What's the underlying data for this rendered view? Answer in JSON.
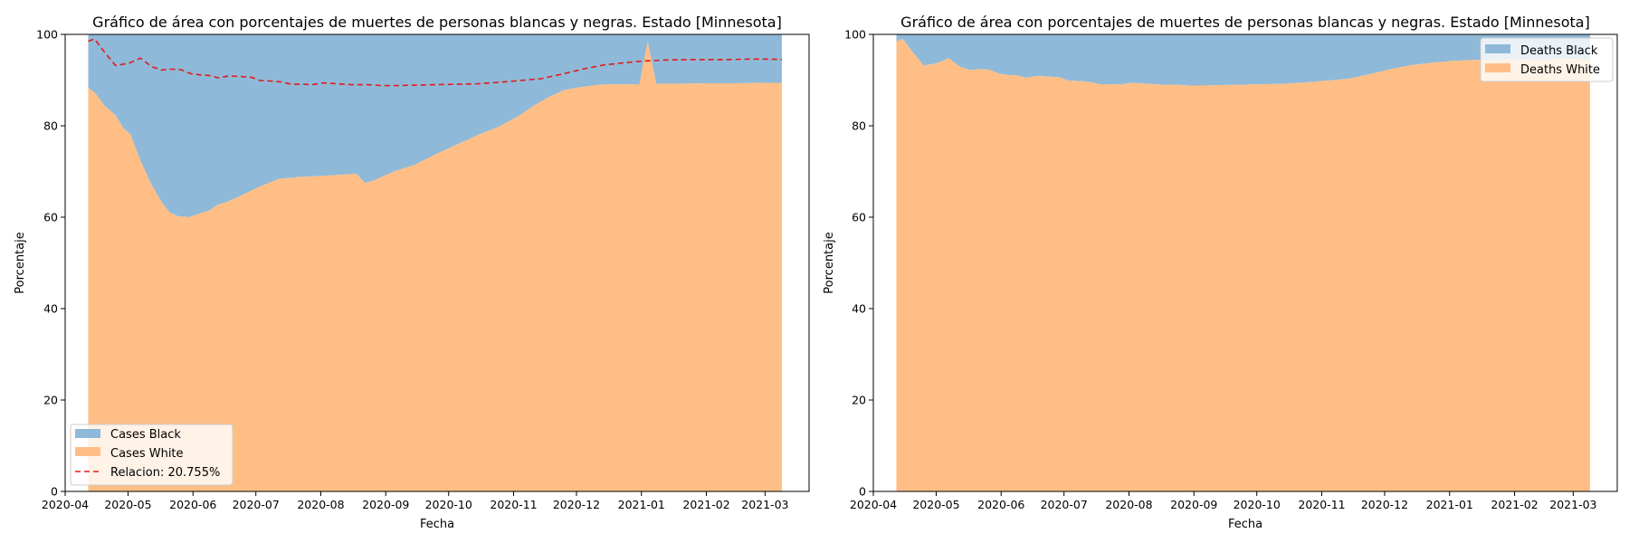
{
  "colors": {
    "black_area": "#8fb9d8",
    "white_area": "#ffbe86",
    "ratio_line": "#e31a1c"
  },
  "chart_data": [
    {
      "type": "area",
      "title": "Gráfico de área con porcentajes de muertes de personas blancas y negras. Estado [Minnesota]",
      "xlabel": "Fecha",
      "ylabel": "Porcentaje",
      "xlim": [
        "2020-04-01",
        "2021-03-22"
      ],
      "ylim": [
        0,
        100
      ],
      "yticks": [
        0,
        20,
        40,
        60,
        80,
        100
      ],
      "xtick_labels": [
        "2020-04",
        "2020-05",
        "2020-06",
        "2020-07",
        "2020-08",
        "2020-09",
        "2020-10",
        "2020-11",
        "2020-12",
        "2021-01",
        "2021-02",
        "2021-03"
      ],
      "legend_position": "lower-left",
      "grid": false,
      "x": [
        "2020-04-12",
        "2020-04-15",
        "2020-04-20",
        "2020-04-25",
        "2020-04-29",
        "2020-05-02",
        "2020-05-07",
        "2020-05-12",
        "2020-05-17",
        "2020-05-21",
        "2020-05-25",
        "2020-05-30",
        "2020-06-09",
        "2020-06-13",
        "2020-06-17",
        "2020-06-22",
        "2020-07-02",
        "2020-07-12",
        "2020-07-22",
        "2020-08-01",
        "2020-08-11",
        "2020-08-18",
        "2020-08-22",
        "2020-08-26",
        "2020-08-29",
        "2020-09-05",
        "2020-09-15",
        "2020-09-25",
        "2020-10-05",
        "2020-10-15",
        "2020-10-25",
        "2020-11-04",
        "2020-11-11",
        "2020-11-18",
        "2020-11-25",
        "2020-12-02",
        "2020-12-12",
        "2020-12-22",
        "2020-12-31",
        "2021-01-04",
        "2021-01-08",
        "2021-01-18",
        "2021-02-01",
        "2021-02-15",
        "2021-03-01",
        "2021-03-09"
      ],
      "series": [
        {
          "name": "Cases White",
          "values": [
            88.3,
            87.3,
            84.3,
            82.3,
            79.3,
            78.3,
            72.3,
            67.3,
            63.3,
            61.0,
            60.2,
            60.0,
            61.5,
            62.8,
            63.3,
            64.3,
            66.5,
            68.4,
            68.8,
            69.0,
            69.3,
            69.5,
            67.5,
            68.0,
            68.6,
            70.0,
            71.5,
            73.8,
            75.9,
            78.0,
            79.8,
            82.3,
            84.5,
            86.3,
            87.8,
            88.4,
            89.0,
            89.1,
            89.0,
            98.5,
            89.2,
            89.2,
            89.3,
            89.3,
            89.4,
            89.4
          ]
        },
        {
          "name": "Cases Black",
          "values": [
            11.7,
            12.7,
            15.7,
            17.7,
            20.7,
            21.7,
            27.7,
            32.7,
            36.7,
            39.0,
            39.8,
            40.0,
            38.5,
            37.2,
            36.7,
            35.7,
            33.5,
            31.6,
            31.2,
            31.0,
            30.7,
            30.5,
            32.5,
            32.0,
            31.4,
            30.0,
            28.5,
            26.2,
            24.1,
            22.0,
            20.2,
            17.7,
            15.5,
            13.7,
            12.2,
            11.6,
            11.0,
            10.9,
            11.0,
            1.5,
            10.8,
            10.8,
            10.7,
            10.7,
            10.6,
            10.6
          ]
        }
      ],
      "line": {
        "name": "Relacion: 20.755%",
        "x": [
          "2020-04-12",
          "2020-04-15",
          "2020-04-20",
          "2020-04-25",
          "2020-04-29",
          "2020-05-02",
          "2020-05-07",
          "2020-05-12",
          "2020-05-17",
          "2020-05-21",
          "2020-05-26",
          "2020-05-31",
          "2020-06-05",
          "2020-06-09",
          "2020-06-13",
          "2020-06-18",
          "2020-06-23",
          "2020-06-29",
          "2020-07-03",
          "2020-07-08",
          "2020-07-13",
          "2020-07-18",
          "2020-07-23",
          "2020-07-28",
          "2020-08-02",
          "2020-08-09",
          "2020-08-16",
          "2020-08-23",
          "2020-08-30",
          "2020-09-06",
          "2020-09-15",
          "2020-09-25",
          "2020-10-05",
          "2020-10-15",
          "2020-10-25",
          "2020-11-04",
          "2020-11-14",
          "2020-11-24",
          "2020-12-04",
          "2020-12-14",
          "2020-12-24",
          "2021-01-03",
          "2021-01-13",
          "2021-01-23",
          "2021-02-02",
          "2021-02-12",
          "2021-02-22",
          "2021-03-02",
          "2021-03-09"
        ],
        "values": [
          98.5,
          99.0,
          96.0,
          93.2,
          93.5,
          93.8,
          94.8,
          93.0,
          92.2,
          92.4,
          92.3,
          91.4,
          91.1,
          91.0,
          90.5,
          90.9,
          90.8,
          90.6,
          89.9,
          89.8,
          89.6,
          89.1,
          89.1,
          89.0,
          89.4,
          89.2,
          89.0,
          89.0,
          88.8,
          88.8,
          88.9,
          89.0,
          89.1,
          89.2,
          89.5,
          89.9,
          90.3,
          91.3,
          92.4,
          93.3,
          93.8,
          94.2,
          94.4,
          94.5,
          94.5,
          94.5,
          94.6,
          94.6,
          94.5
        ]
      }
    },
    {
      "type": "area",
      "title": "Gráfico de área con porcentajes de muertes de personas blancas y negras. Estado [Minnesota]",
      "xlabel": "Fecha",
      "ylabel": "Porcentaje",
      "xlim": [
        "2020-04-01",
        "2021-03-22"
      ],
      "ylim": [
        0,
        100
      ],
      "yticks": [
        0,
        20,
        40,
        60,
        80,
        100
      ],
      "xtick_labels": [
        "2020-04",
        "2020-05",
        "2020-06",
        "2020-07",
        "2020-08",
        "2020-09",
        "2020-10",
        "2020-11",
        "2020-12",
        "2021-01",
        "2021-02",
        "2021-03"
      ],
      "legend_position": "upper-right",
      "grid": false,
      "x": [
        "2020-04-12",
        "2020-04-15",
        "2020-04-20",
        "2020-04-25",
        "2020-04-29",
        "2020-05-02",
        "2020-05-07",
        "2020-05-12",
        "2020-05-17",
        "2020-05-21",
        "2020-05-26",
        "2020-05-31",
        "2020-06-05",
        "2020-06-09",
        "2020-06-13",
        "2020-06-18",
        "2020-06-23",
        "2020-06-29",
        "2020-07-03",
        "2020-07-08",
        "2020-07-13",
        "2020-07-18",
        "2020-07-23",
        "2020-07-28",
        "2020-08-02",
        "2020-08-09",
        "2020-08-16",
        "2020-08-23",
        "2020-08-30",
        "2020-09-06",
        "2020-09-15",
        "2020-09-25",
        "2020-10-05",
        "2020-10-15",
        "2020-10-25",
        "2020-11-04",
        "2020-11-14",
        "2020-11-24",
        "2020-12-04",
        "2020-12-14",
        "2020-12-24",
        "2021-01-03",
        "2021-01-13",
        "2021-01-23",
        "2021-02-02",
        "2021-02-12",
        "2021-02-22",
        "2021-03-02",
        "2021-03-09"
      ],
      "series": [
        {
          "name": "Deaths White",
          "values": [
            98.5,
            99.0,
            96.0,
            93.2,
            93.5,
            93.8,
            94.8,
            93.0,
            92.2,
            92.4,
            92.3,
            91.4,
            91.1,
            91.0,
            90.5,
            90.9,
            90.8,
            90.6,
            89.9,
            89.8,
            89.6,
            89.1,
            89.1,
            89.0,
            89.4,
            89.2,
            89.0,
            89.0,
            88.8,
            88.8,
            88.9,
            89.0,
            89.1,
            89.2,
            89.5,
            89.9,
            90.3,
            91.3,
            92.4,
            93.3,
            93.8,
            94.2,
            94.4,
            94.5,
            94.5,
            94.5,
            94.6,
            94.6,
            94.5
          ]
        },
        {
          "name": "Deaths Black",
          "values": [
            1.5,
            1.0,
            4.0,
            6.8,
            6.5,
            6.2,
            5.2,
            7.0,
            7.8,
            7.6,
            7.7,
            8.6,
            8.9,
            9.0,
            9.5,
            9.1,
            9.2,
            9.4,
            10.1,
            10.2,
            10.4,
            10.9,
            10.9,
            11.0,
            10.6,
            10.8,
            11.0,
            11.0,
            11.2,
            11.2,
            11.1,
            11.0,
            10.9,
            10.8,
            10.5,
            10.1,
            9.7,
            8.7,
            7.6,
            6.7,
            6.2,
            5.8,
            5.6,
            5.5,
            5.5,
            5.5,
            5.4,
            5.4,
            5.5
          ]
        }
      ]
    }
  ]
}
